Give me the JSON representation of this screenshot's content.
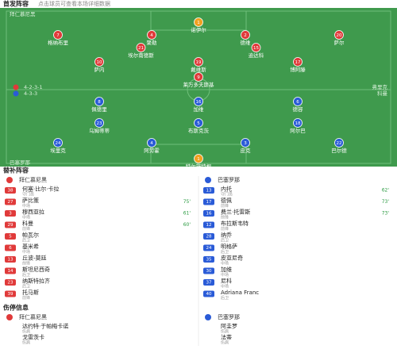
{
  "header": {
    "title": "首发阵容",
    "subtitle": "点击球员可查看本场详细数据"
  },
  "pitch": {
    "home": {
      "team": "拜仁慕尼黑",
      "formation": "4-2-3-1",
      "coach": "弗里克",
      "players": [
        {
          "number": "1",
          "name": "诺伊尔"
        },
        {
          "number": "7",
          "name": "格纳布里"
        },
        {
          "number": "4",
          "name": "聚勒"
        },
        {
          "number": "2",
          "name": "德维"
        },
        {
          "number": "20",
          "name": "萨尔"
        },
        {
          "number": "21",
          "name": "埃尔南德斯"
        },
        {
          "number": "15",
          "name": "迪达科"
        },
        {
          "number": "10",
          "name": "萨内"
        },
        {
          "number": "19",
          "name": "戴维斯"
        },
        {
          "number": "17",
          "name": "博阿滕"
        },
        {
          "number": "9",
          "name": "莱万多夫斯基"
        }
      ]
    },
    "away": {
      "team": "巴塞罗那",
      "formation": "4-3-3",
      "coach": "科曼",
      "players": [
        {
          "number": "1",
          "name": "特尔施特根"
        },
        {
          "number": "24",
          "name": "埃里克"
        },
        {
          "number": "4",
          "name": "阿劳霍"
        },
        {
          "number": "3",
          "name": "皮克"
        },
        {
          "number": "22",
          "name": "巴尔德"
        },
        {
          "number": "23",
          "name": "乌姆蒂蒂"
        },
        {
          "number": "5",
          "name": "布斯克茨"
        },
        {
          "number": "18",
          "name": "阿尔巴"
        },
        {
          "number": "8",
          "name": "佩德里"
        },
        {
          "number": "16",
          "name": "加维"
        },
        {
          "number": "6",
          "name": "德容"
        }
      ]
    }
  },
  "subs": {
    "title": "替补阵容",
    "home": {
      "team": "拜仁慕尼黑",
      "players": [
        {
          "number": "38",
          "name": "何塞·比尔·卡拉",
          "position": "守门员"
        },
        {
          "number": "27",
          "name": "萨比策",
          "position": "中场",
          "minute": "75'"
        },
        {
          "number": "3",
          "name": "穆西亚拉",
          "position": "中场",
          "minute": "61'"
        },
        {
          "number": "29",
          "name": "科曼",
          "position": "前锋",
          "minute": "60'"
        },
        {
          "number": "5",
          "name": "帕瓦尔",
          "position": "后卫"
        },
        {
          "number": "6",
          "name": "基米希",
          "position": "中场"
        },
        {
          "number": "13",
          "name": "丘波-莫廷",
          "position": "前锋"
        },
        {
          "number": "14",
          "name": "斯坦尼西奇",
          "position": "后卫"
        },
        {
          "number": "23",
          "name": "纳斯特拉齐",
          "position": "后卫"
        },
        {
          "number": "39",
          "name": "托马斯",
          "position": "前锋"
        }
      ]
    },
    "away": {
      "team": "巴塞罗那",
      "players": [
        {
          "number": "13",
          "name": "内托",
          "position": "守门员",
          "minute": "62'"
        },
        {
          "number": "17",
          "name": "德佩",
          "position": "前锋",
          "minute": "73'"
        },
        {
          "number": "16",
          "name": "费兰·托雷斯",
          "position": "前锋",
          "minute": "73'"
        },
        {
          "number": "12",
          "name": "布拉斯韦特",
          "position": "前锋"
        },
        {
          "number": "28",
          "name": "纳乔",
          "position": "后卫"
        },
        {
          "number": "24",
          "name": "明格萨",
          "position": "后卫"
        },
        {
          "number": "35",
          "name": "皮亚尼奇",
          "position": "中场"
        },
        {
          "number": "30",
          "name": "加维",
          "position": "中场"
        },
        {
          "number": "37",
          "name": "尼科",
          "position": "中场"
        },
        {
          "number": "40",
          "name": "Adriana Franc",
          "position": "后卫"
        }
      ]
    }
  },
  "injuries": {
    "title": "伤停信息",
    "home": {
      "team": "拜仁慕尼黑",
      "players": [
        {
          "name": "达约特·于帕梅卡诺",
          "reason": "伤病"
        },
        {
          "name": "戈雷茨卡",
          "reason": "伤病"
        }
      ]
    },
    "away": {
      "team": "巴塞罗那",
      "players": [
        {
          "name": "阿圭罗",
          "reason": "伤病"
        },
        {
          "name": "法蒂",
          "reason": "伤病"
        }
      ]
    }
  }
}
